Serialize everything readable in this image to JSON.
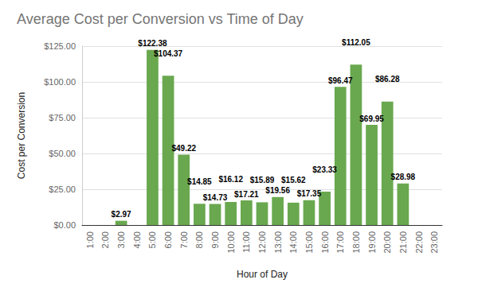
{
  "chart_data": {
    "type": "bar",
    "title": "Average Cost per Conversion vs Time of Day",
    "x_label": "Hour of Day",
    "y_label": "Cost per Conversion",
    "categories": [
      "1:00",
      "2:00",
      "3:00",
      "4:00",
      "5:00",
      "6:00",
      "7:00",
      "8:00",
      "9:00",
      "10:00",
      "11:00",
      "12:00",
      "13:00",
      "14:00",
      "15:00",
      "16:00",
      "17:00",
      "18:00",
      "19:00",
      "20:00",
      "21:00",
      "22:00",
      "23:00"
    ],
    "values": [
      null,
      null,
      2.97,
      null,
      122.38,
      104.37,
      49.22,
      14.85,
      14.73,
      16.12,
      17.21,
      15.89,
      19.56,
      15.62,
      17.35,
      23.33,
      96.47,
      112.05,
      69.95,
      86.28,
      28.98,
      null,
      null
    ],
    "value_labels": [
      null,
      null,
      "$2.97",
      null,
      "$122.38",
      "$104.37",
      "$49.22",
      "$14.85",
      "$14.73",
      "$16.12",
      "$17.21",
      "$15.89",
      "$19.56",
      "$15.62",
      "$17.35",
      "$23.33",
      "$96.47",
      "$112.05",
      "$69.95",
      "$86.28",
      "$28.98",
      null,
      null
    ],
    "color": "#6aa84f",
    "ylim": [
      0,
      125
    ],
    "yticks": [
      {
        "value": 0,
        "label": "$0.00"
      },
      {
        "value": 25,
        "label": "$25.00"
      },
      {
        "value": 50,
        "label": "$50.00"
      },
      {
        "value": 75,
        "label": "$75.00"
      },
      {
        "value": 100,
        "label": "$100.00"
      },
      {
        "value": 125,
        "label": "$125.00"
      }
    ],
    "grid": true,
    "data_labels": true
  }
}
